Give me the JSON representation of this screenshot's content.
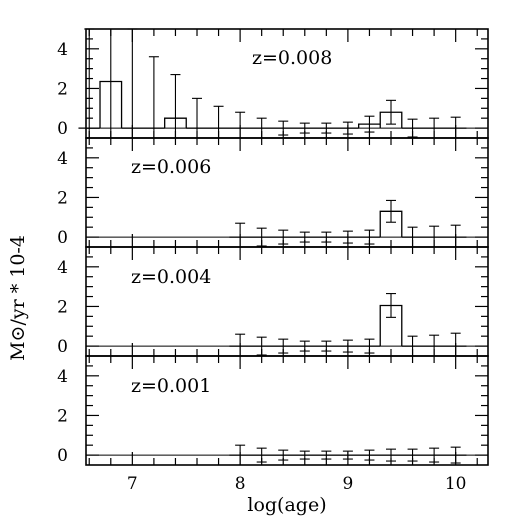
{
  "chart_data": {
    "type": "histogram",
    "xlabel": "log(age)",
    "ylabel": "M⊙/yr * 10-4",
    "xlim": [
      6.57,
      10.3
    ],
    "ylim": [
      -0.5,
      5
    ],
    "x_ticks": [
      "7",
      "8",
      "9",
      "10"
    ],
    "y_ticks": [
      "0",
      "2",
      "4"
    ],
    "grid": false,
    "bin_width": 0.2,
    "panels": [
      {
        "label": "z=0.008",
        "bins": [
          {
            "x": 6.6,
            "value": 0.0,
            "err": 5.0
          },
          {
            "x": 6.8,
            "value": 2.35,
            "err": 5.0
          },
          {
            "x": 7.0,
            "value": 0.0,
            "err": 5.0
          },
          {
            "x": 7.2,
            "value": 0.0,
            "err": 3.6
          },
          {
            "x": 7.4,
            "value": 0.5,
            "err": 2.2
          },
          {
            "x": 7.6,
            "value": 0.0,
            "err": 1.5
          },
          {
            "x": 7.8,
            "value": 0.0,
            "err": 1.1
          },
          {
            "x": 8.0,
            "value": 0.0,
            "err": 0.8
          },
          {
            "x": 8.2,
            "value": 0.0,
            "err": 0.5
          },
          {
            "x": 8.4,
            "value": 0.0,
            "err": 0.35
          },
          {
            "x": 8.6,
            "value": 0.0,
            "err": 0.25
          },
          {
            "x": 8.8,
            "value": 0.0,
            "err": 0.25
          },
          {
            "x": 9.0,
            "value": 0.0,
            "err": 0.3
          },
          {
            "x": 9.2,
            "value": 0.2,
            "err": 0.4
          },
          {
            "x": 9.4,
            "value": 0.8,
            "err": 0.6
          },
          {
            "x": 9.6,
            "value": 0.0,
            "err": 0.45
          },
          {
            "x": 9.8,
            "value": 0.0,
            "err": 0.5
          },
          {
            "x": 10.0,
            "value": 0.0,
            "err": 0.55
          }
        ]
      },
      {
        "label": "z=0.006",
        "bins": [
          {
            "x": 8.0,
            "value": 0.0,
            "err": 0.7
          },
          {
            "x": 8.2,
            "value": 0.0,
            "err": 0.45
          },
          {
            "x": 8.4,
            "value": 0.0,
            "err": 0.35
          },
          {
            "x": 8.6,
            "value": 0.0,
            "err": 0.25
          },
          {
            "x": 8.8,
            "value": 0.0,
            "err": 0.25
          },
          {
            "x": 9.0,
            "value": 0.0,
            "err": 0.3
          },
          {
            "x": 9.2,
            "value": 0.0,
            "err": 0.35
          },
          {
            "x": 9.4,
            "value": 1.3,
            "err": 0.55
          },
          {
            "x": 9.6,
            "value": 0.0,
            "err": 0.5
          },
          {
            "x": 9.8,
            "value": 0.0,
            "err": 0.55
          },
          {
            "x": 10.0,
            "value": 0.0,
            "err": 0.6
          }
        ]
      },
      {
        "label": "z=0.004",
        "bins": [
          {
            "x": 8.0,
            "value": 0.0,
            "err": 0.6
          },
          {
            "x": 8.2,
            "value": 0.0,
            "err": 0.45
          },
          {
            "x": 8.4,
            "value": 0.0,
            "err": 0.35
          },
          {
            "x": 8.6,
            "value": 0.0,
            "err": 0.25
          },
          {
            "x": 8.8,
            "value": 0.0,
            "err": 0.25
          },
          {
            "x": 9.0,
            "value": 0.0,
            "err": 0.3
          },
          {
            "x": 9.2,
            "value": 0.0,
            "err": 0.35
          },
          {
            "x": 9.4,
            "value": 2.05,
            "err": 0.6
          },
          {
            "x": 9.6,
            "value": 0.0,
            "err": 0.5
          },
          {
            "x": 9.8,
            "value": 0.0,
            "err": 0.55
          },
          {
            "x": 10.0,
            "value": 0.0,
            "err": 0.65
          }
        ]
      },
      {
        "label": "z=0.001",
        "bins": [
          {
            "x": 8.0,
            "value": 0.0,
            "err": 0.5
          },
          {
            "x": 8.2,
            "value": 0.0,
            "err": 0.35
          },
          {
            "x": 8.4,
            "value": 0.0,
            "err": 0.25
          },
          {
            "x": 8.6,
            "value": 0.0,
            "err": 0.2
          },
          {
            "x": 8.8,
            "value": 0.0,
            "err": 0.2
          },
          {
            "x": 9.0,
            "value": 0.0,
            "err": 0.2
          },
          {
            "x": 9.2,
            "value": 0.0,
            "err": 0.25
          },
          {
            "x": 9.4,
            "value": 0.0,
            "err": 0.3
          },
          {
            "x": 9.6,
            "value": 0.0,
            "err": 0.3
          },
          {
            "x": 9.8,
            "value": 0.0,
            "err": 0.35
          },
          {
            "x": 10.0,
            "value": 0.0,
            "err": 0.4
          }
        ]
      }
    ]
  }
}
